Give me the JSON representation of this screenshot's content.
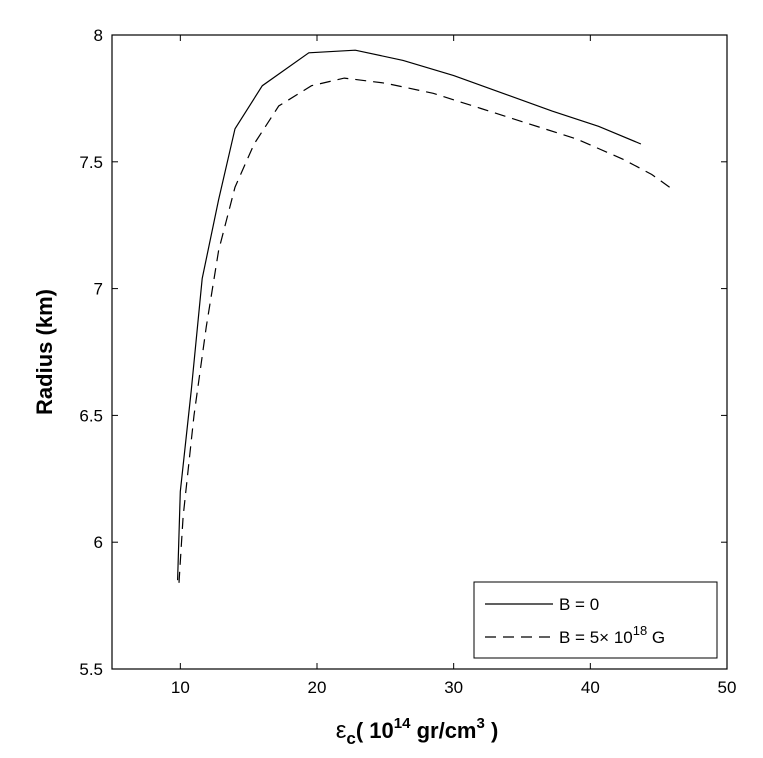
{
  "chart_data": {
    "type": "line",
    "title": "",
    "xlabel": {
      "symbol": "ε",
      "subscript": "c",
      "open": "( 10",
      "exp": "14",
      "mid": " gr/cm",
      "exp2": "3",
      "close": " )"
    },
    "ylabel": "Radius (km)",
    "xlim": [
      5,
      50
    ],
    "ylim": [
      5.5,
      8
    ],
    "xticks": [
      10,
      20,
      30,
      40,
      50
    ],
    "yticks": [
      5.5,
      6,
      6.5,
      7,
      7.5,
      8
    ],
    "xtick_labels": [
      "10",
      "20",
      "30",
      "40",
      "50"
    ],
    "ytick_labels": [
      "5.5",
      "6",
      "6.5",
      "7",
      "7.5",
      "8"
    ],
    "grid": false,
    "legend_position": "bottom-right",
    "series": [
      {
        "name": "B = 0",
        "style": "solid",
        "color": "#000000",
        "points": [
          [
            9.8,
            5.85
          ],
          [
            10.0,
            6.2
          ],
          [
            10.8,
            6.6
          ],
          [
            11.6,
            7.04
          ],
          [
            12.8,
            7.35
          ],
          [
            14.0,
            7.63
          ],
          [
            16.0,
            7.8
          ],
          [
            19.4,
            7.93
          ],
          [
            22.8,
            7.94
          ],
          [
            26.3,
            7.9
          ],
          [
            30.0,
            7.84
          ],
          [
            33.6,
            7.77
          ],
          [
            37.2,
            7.7
          ],
          [
            40.6,
            7.64
          ],
          [
            43.7,
            7.57
          ]
        ]
      },
      {
        "name": "B = 5× 10^18 G",
        "label_base": "B = 5× 10",
        "label_exp": "18",
        "label_tail": " G",
        "style": "dashed",
        "color": "#000000",
        "points": [
          [
            9.9,
            5.84
          ],
          [
            10.2,
            6.1
          ],
          [
            11.0,
            6.5
          ],
          [
            11.9,
            6.85
          ],
          [
            12.8,
            7.15
          ],
          [
            14.0,
            7.4
          ],
          [
            15.4,
            7.57
          ],
          [
            17.2,
            7.72
          ],
          [
            19.6,
            7.8
          ],
          [
            22.0,
            7.83
          ],
          [
            25.0,
            7.81
          ],
          [
            28.5,
            7.77
          ],
          [
            32.0,
            7.71
          ],
          [
            35.5,
            7.65
          ],
          [
            39.0,
            7.59
          ],
          [
            42.4,
            7.51
          ],
          [
            44.5,
            7.45
          ],
          [
            45.8,
            7.4
          ]
        ]
      }
    ]
  }
}
